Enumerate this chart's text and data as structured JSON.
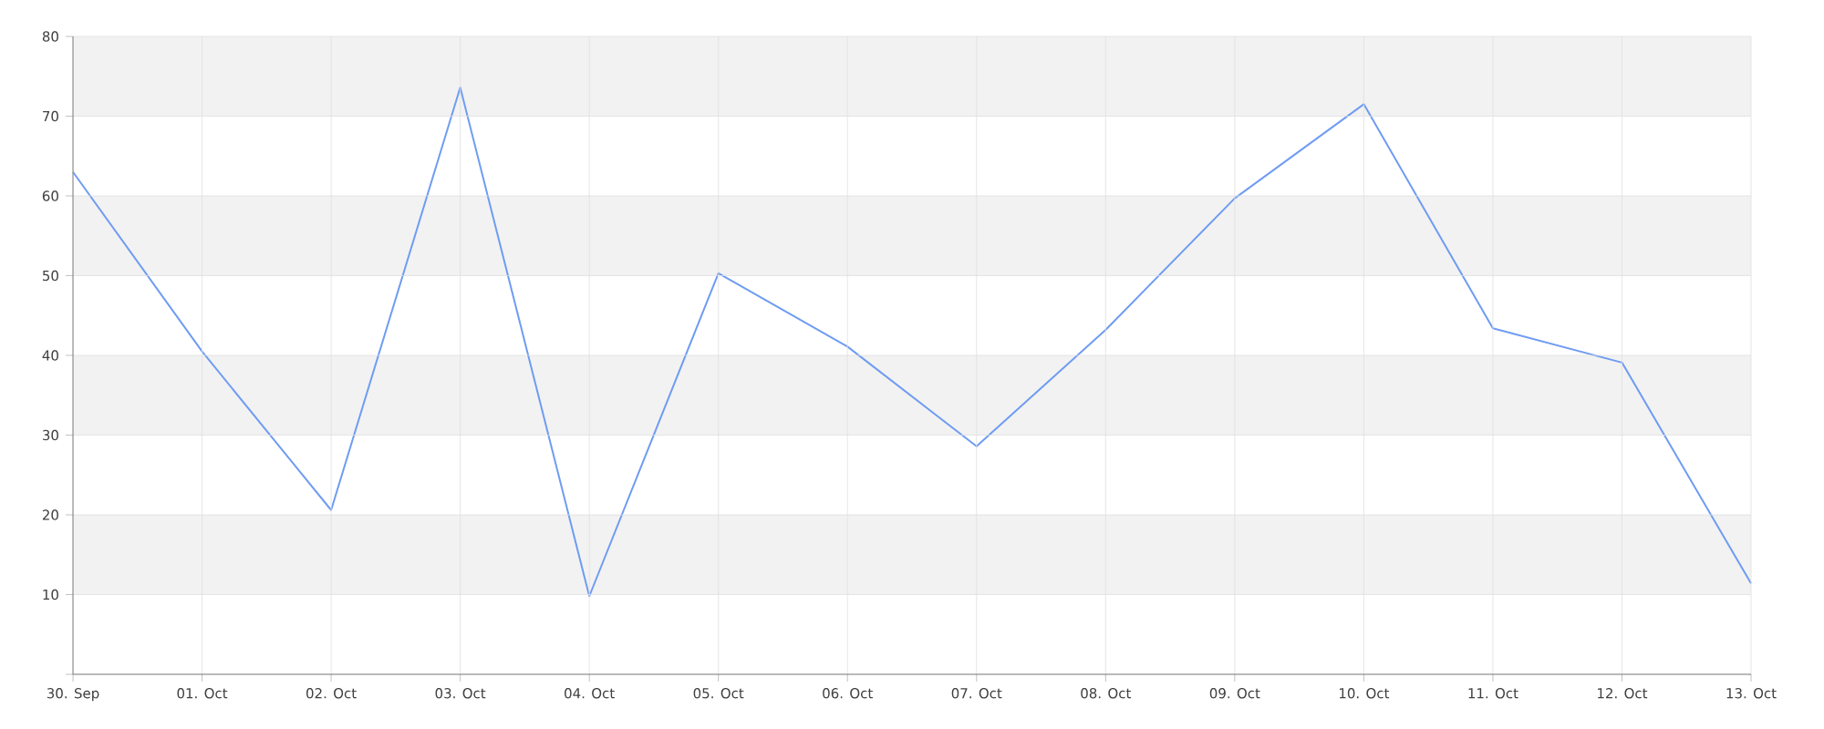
{
  "chart_data": {
    "type": "line",
    "categories": [
      "30. Sep",
      "01. Oct",
      "02. Oct",
      "03. Oct",
      "04. Oct",
      "05. Oct",
      "06. Oct",
      "07. Oct",
      "08. Oct",
      "09. Oct",
      "10. Oct",
      "11. Oct",
      "12. Oct",
      "13. Oct"
    ],
    "series": [
      {
        "color": "#6f9cf2",
        "values": [
          63,
          40.5,
          20.6,
          73.6,
          9.8,
          50.3,
          41.1,
          28.6,
          43.2,
          59.7,
          71.5,
          43.4,
          39.1,
          11.4
        ]
      }
    ],
    "ylim": [
      0,
      80
    ],
    "yticks": [
      {
        "value": 0,
        "label": null
      },
      10,
      20,
      30,
      40,
      50,
      60,
      70,
      80
    ],
    "grid": true,
    "marker": "none",
    "line_style": "solid"
  }
}
